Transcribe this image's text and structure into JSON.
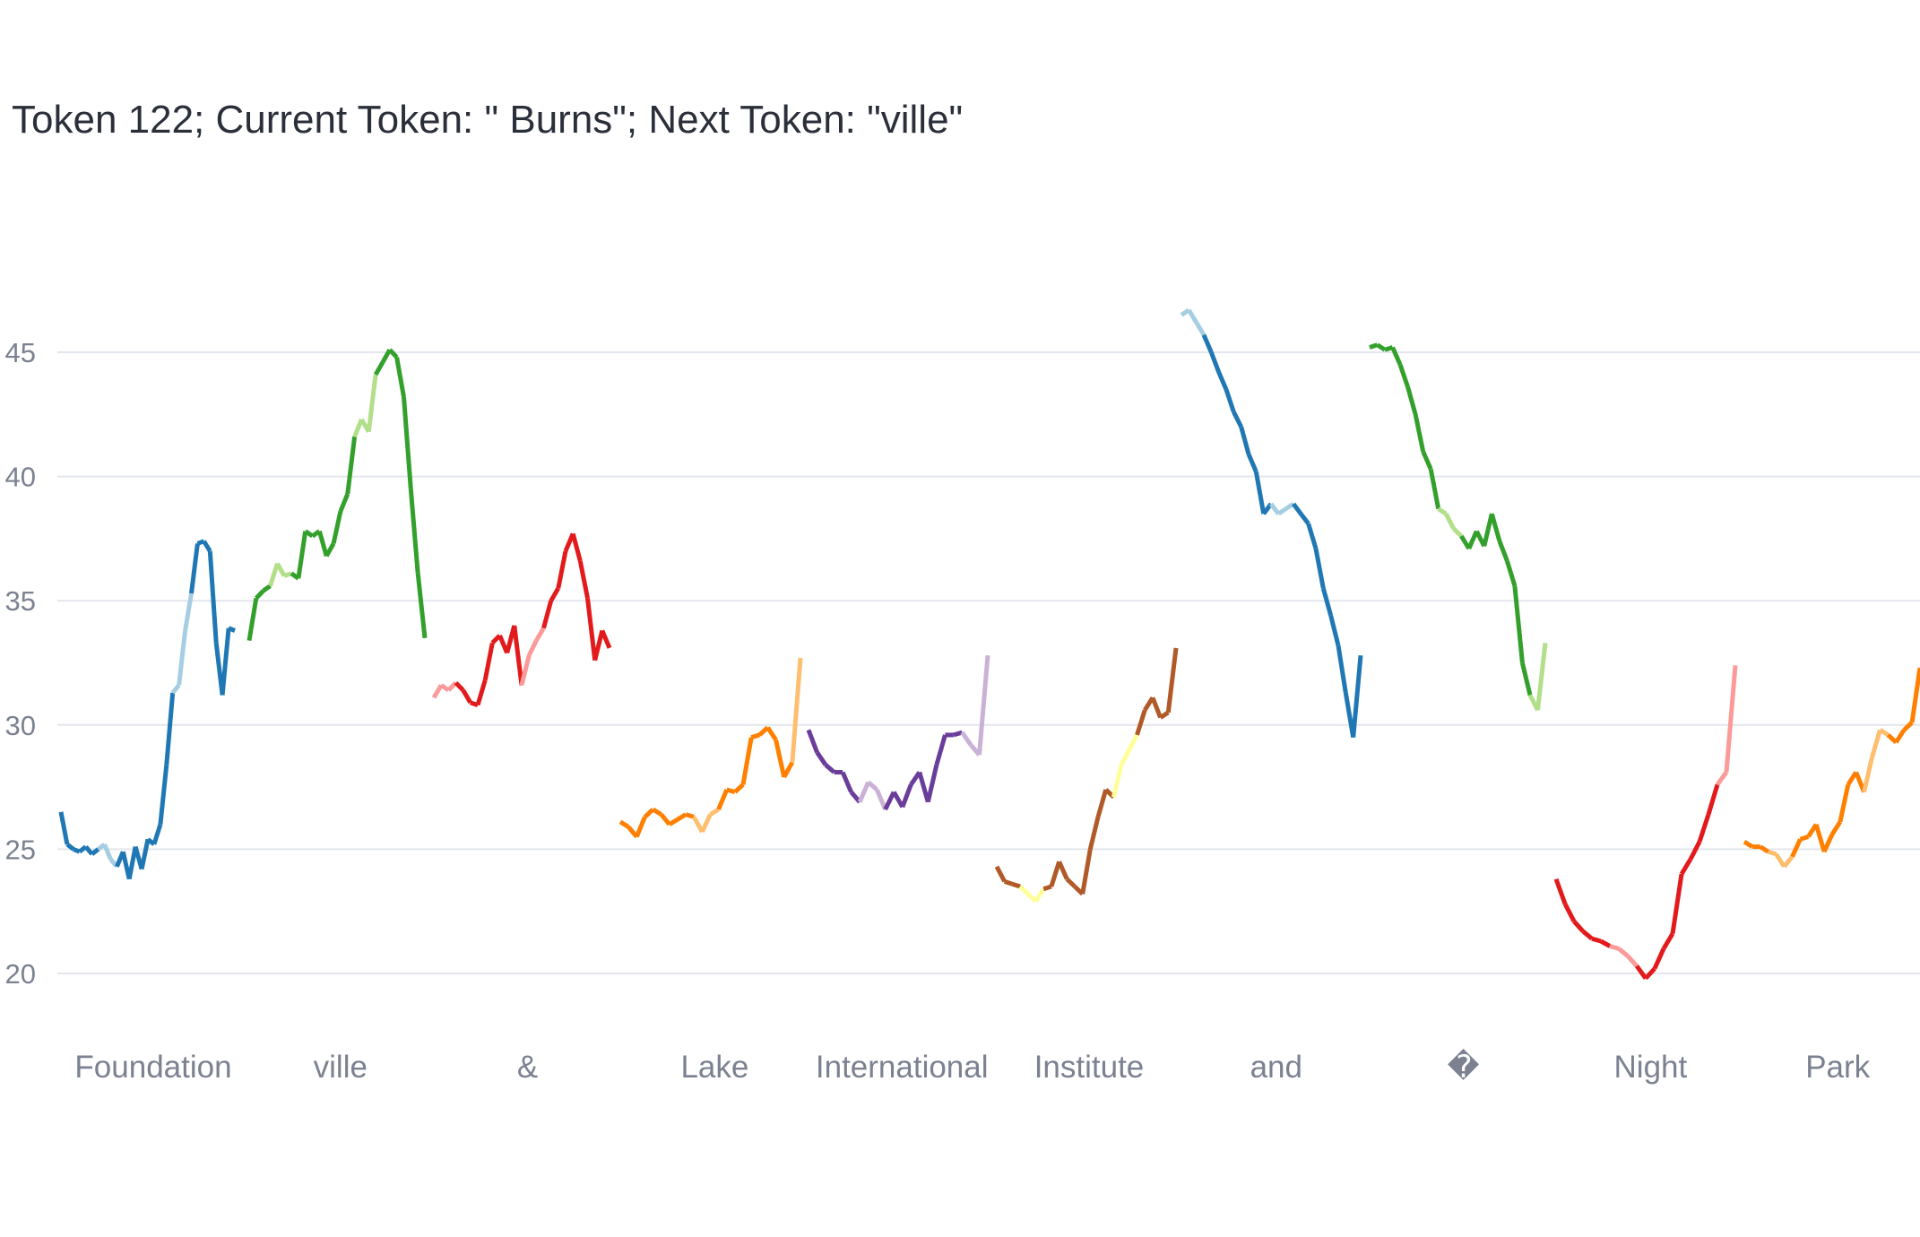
{
  "chart_data": {
    "type": "line",
    "title": "Token 122; Current Token: \" Burns\"; Next Token: \"ville\"",
    "xlabel": "",
    "ylabel": "",
    "ylim": [
      18.5,
      48
    ],
    "yticks": [
      20,
      25,
      30,
      35,
      40,
      45
    ],
    "grid": true,
    "x_tick_labels": [
      "Foundation",
      "ville",
      "&",
      "Lake",
      "International",
      "Institute",
      "and",
      "�",
      "Night",
      "Park"
    ],
    "series": [
      {
        "color": "#1f77b4",
        "alt_color": "#a6cee3",
        "values": [
          26.5,
          25.2,
          25.0,
          24.9,
          25.1,
          24.8,
          25.0,
          25.2,
          24.6,
          24.3,
          24.9,
          23.8,
          25.1,
          24.2,
          25.4,
          25.2,
          26.0,
          28.4,
          31.3,
          31.6,
          33.8,
          35.3,
          37.3,
          37.4,
          37.0,
          33.3,
          31.2,
          33.9,
          33.8
        ]
      },
      {
        "color": "#33a02c",
        "alt_color": "#b2df8a",
        "values": [
          33.4,
          35.1,
          35.4,
          35.6,
          36.5,
          36.0,
          36.1,
          35.9,
          37.8,
          37.6,
          37.8,
          36.8,
          37.3,
          38.6,
          39.3,
          41.6,
          42.3,
          41.8,
          44.1,
          44.6,
          45.1,
          44.8,
          43.2,
          39.5,
          36.1,
          33.5
        ]
      },
      {
        "color": "#e31a1c",
        "alt_color": "#fb9a99",
        "values": [
          31.1,
          31.6,
          31.4,
          31.7,
          31.4,
          30.9,
          30.8,
          31.8,
          33.3,
          33.6,
          32.9,
          34.0,
          31.6,
          32.8,
          33.4,
          33.9,
          35.0,
          35.5,
          37.0,
          37.7,
          36.6,
          35.1,
          32.6,
          33.8,
          33.1
        ]
      },
      {
        "color": "#ff7f00",
        "alt_color": "#fdbf6f",
        "values": [
          26.1,
          25.9,
          25.5,
          26.3,
          26.6,
          26.4,
          26.0,
          26.2,
          26.4,
          26.3,
          25.7,
          26.4,
          26.6,
          27.4,
          27.3,
          27.6,
          29.5,
          29.6,
          29.9,
          29.4,
          27.9,
          28.5,
          32.7
        ]
      },
      {
        "color": "#6a3d9a",
        "alt_color": "#cab2d6",
        "values": [
          29.8,
          28.9,
          28.4,
          28.1,
          28.1,
          27.3,
          26.9,
          27.7,
          27.4,
          26.6,
          27.3,
          26.7,
          27.6,
          28.1,
          26.9,
          28.4,
          29.6,
          29.6,
          29.7,
          29.2,
          28.8,
          32.8
        ]
      },
      {
        "color": "#b15928",
        "alt_color": "#ffff99",
        "values": [
          24.3,
          23.7,
          23.6,
          23.5,
          23.2,
          22.9,
          23.4,
          23.5,
          24.5,
          23.8,
          23.5,
          23.2,
          25.0,
          26.3,
          27.4,
          27.1,
          28.4,
          29.0,
          29.6,
          30.6,
          31.1,
          30.3,
          30.5,
          33.1
        ]
      },
      {
        "color": "#1f77b4",
        "alt_color": "#a6cee3",
        "values": [
          46.5,
          46.7,
          46.2,
          45.7,
          45.0,
          44.2,
          43.5,
          42.6,
          42.0,
          40.9,
          40.2,
          38.5,
          38.9,
          38.5,
          38.7,
          38.9,
          38.5,
          38.1,
          37.1,
          35.5,
          34.4,
          33.2,
          31.3,
          29.5,
          32.8
        ]
      },
      {
        "color": "#33a02c",
        "alt_color": "#b2df8a",
        "values": [
          45.2,
          45.3,
          45.1,
          45.2,
          44.5,
          43.6,
          42.5,
          41.0,
          40.3,
          38.7,
          38.5,
          37.9,
          37.6,
          37.1,
          37.8,
          37.2,
          38.5,
          37.4,
          36.6,
          35.6,
          32.5,
          31.2,
          30.6,
          33.3
        ]
      },
      {
        "color": "#e31a1c",
        "alt_color": "#fb9a99",
        "values": [
          23.8,
          22.8,
          22.1,
          21.7,
          21.4,
          21.3,
          21.1,
          21.0,
          20.7,
          20.3,
          19.8,
          20.2,
          21.0,
          21.6,
          24.0,
          24.6,
          25.3,
          26.4,
          27.6,
          28.1,
          32.4
        ]
      },
      {
        "color": "#ff7f00",
        "alt_color": "#fdbf6f",
        "values": [
          25.3,
          25.1,
          25.1,
          24.9,
          24.8,
          24.3,
          24.7,
          25.4,
          25.5,
          26.0,
          24.9,
          25.6,
          26.1,
          27.6,
          28.1,
          27.3,
          28.7,
          29.8,
          29.6,
          29.3,
          29.8,
          30.1,
          32.3
        ]
      }
    ]
  }
}
